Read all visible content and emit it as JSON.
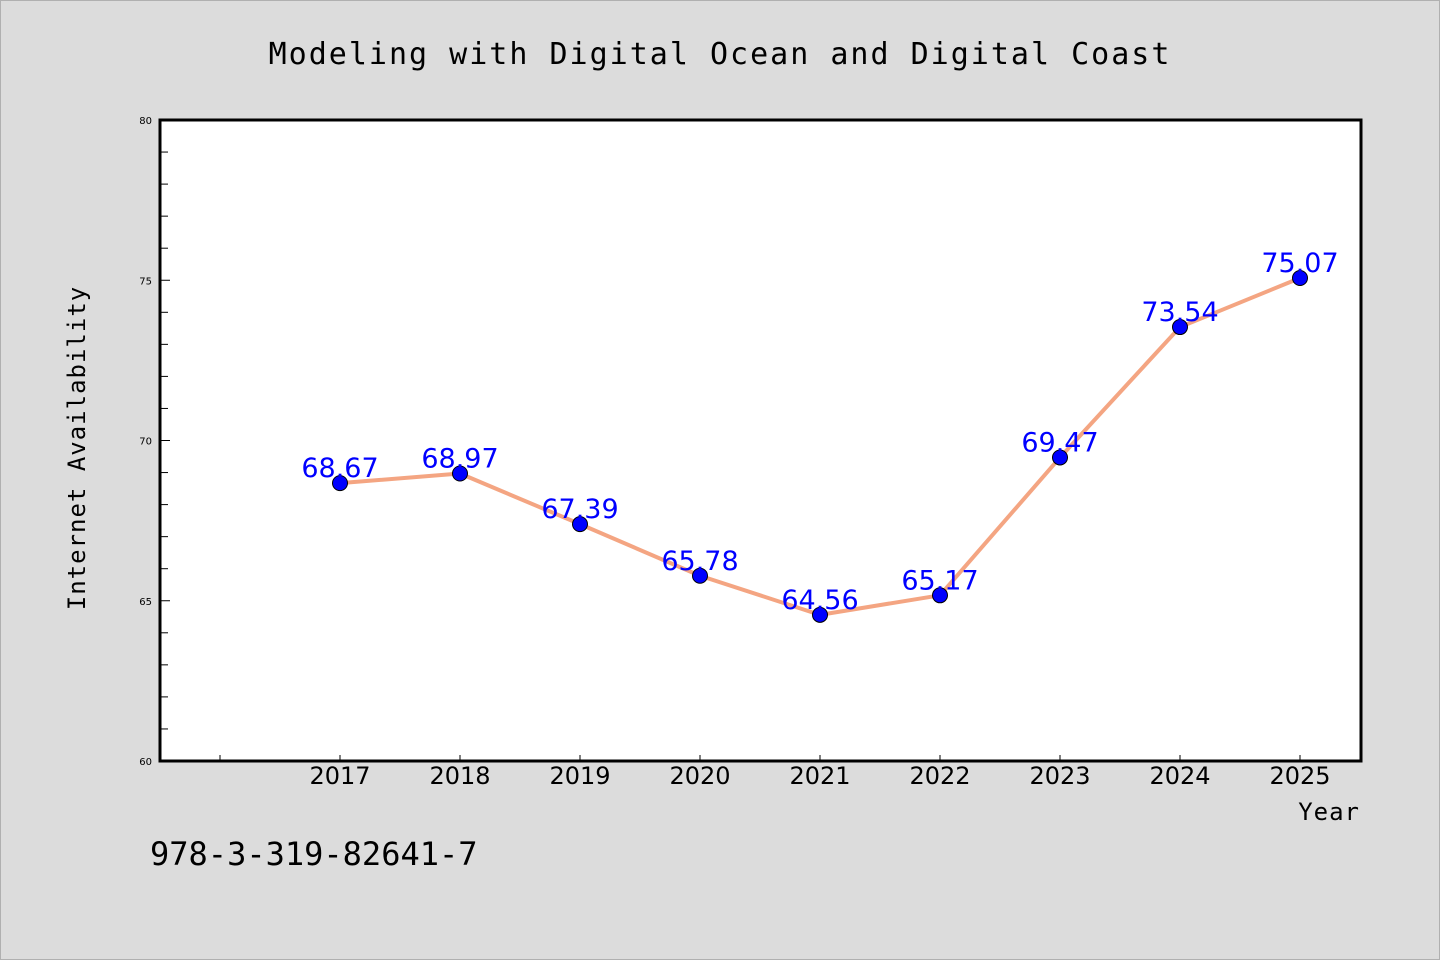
{
  "chart_data": {
    "type": "line",
    "title": "Modeling with Digital Ocean and Digital Coast",
    "xlabel": "Year",
    "ylabel": "Internet Availability",
    "categories": [
      "2017",
      "2018",
      "2019",
      "2020",
      "2021",
      "2022",
      "2023",
      "2024",
      "2025"
    ],
    "series": [
      {
        "values": [
          68.67,
          68.97,
          67.39,
          65.78,
          64.56,
          65.17,
          69.47,
          73.54,
          75.07
        ],
        "labels": [
          "68.67",
          "68.97",
          "67.39",
          "65.78",
          "64.56",
          "65.17",
          "69.47",
          "73.54",
          "75.07"
        ],
        "line_color": "#f4a582",
        "marker_color": "#0000ff"
      }
    ],
    "ylim": [
      60,
      80
    ],
    "yticks": [
      "60",
      "65",
      "70",
      "75",
      "80"
    ],
    "grid": false,
    "background": "#dcdcdc",
    "plot_background": "#ffffff",
    "label_color": "#0000ff"
  },
  "annotation": "978-3-319-82641-7"
}
